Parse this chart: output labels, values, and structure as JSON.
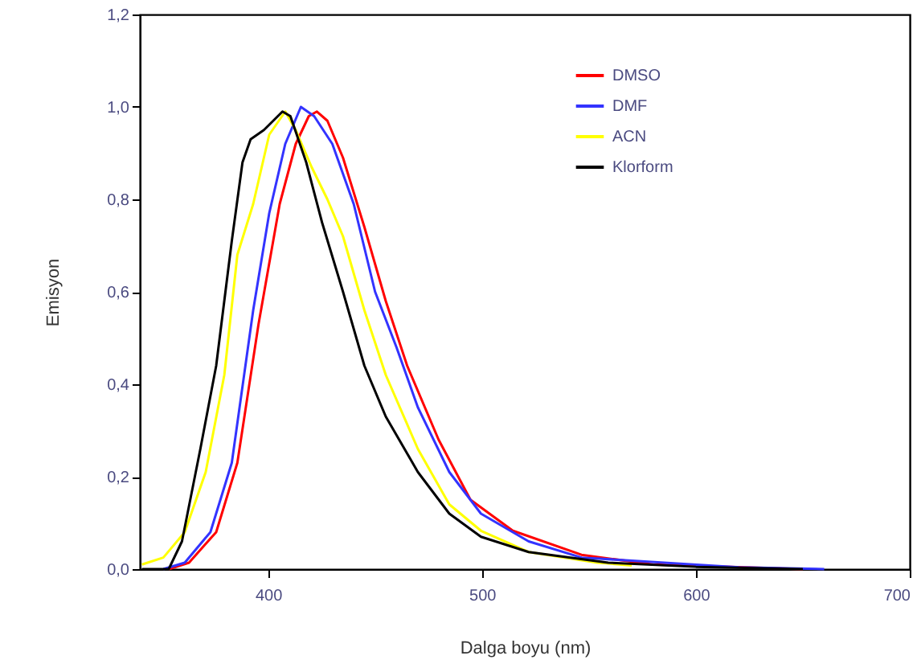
{
  "chart_data": {
    "type": "line",
    "xlabel": "Dalga boyu (nm)",
    "ylabel": "Emisyon",
    "xlim": [
      340,
      700
    ],
    "xticks": [
      400,
      500,
      600,
      700
    ],
    "ylim": [
      0,
      1.2
    ],
    "yticks": [
      {
        "value": 0,
        "label": "0,0"
      },
      {
        "value": 0.2,
        "label": "0,2"
      },
      {
        "value": 0.4,
        "label": "0,4"
      },
      {
        "value": 0.6,
        "label": "0,6"
      },
      {
        "value": 0.8,
        "label": "0,8"
      },
      {
        "value": 1.0,
        "label": "1,0"
      },
      {
        "value": 1.2,
        "label": "1,2"
      }
    ],
    "grid": false,
    "legend": "top right",
    "line_style": "solid",
    "series": [
      {
        "name": "DMSO",
        "color": "#ff0000",
        "x": [
          353.5,
          363,
          375.7,
          385.6,
          395.5,
          405.4,
          412.9,
          419,
          422.8,
          427.7,
          435,
          445,
          455,
          465,
          479.7,
          494.6,
          514.4,
          546.5,
          580,
          650
        ],
        "values": [
          0,
          0.014,
          0.08,
          0.23,
          0.53,
          0.79,
          0.92,
          0.98,
          0.99,
          0.97,
          0.89,
          0.74,
          0.58,
          0.44,
          0.28,
          0.15,
          0.083,
          0.031,
          0.01,
          0
        ]
      },
      {
        "name": "DMF",
        "color": "#3333ff",
        "x": [
          351,
          361,
          373,
          383,
          393,
          400.5,
          408,
          415.3,
          421.5,
          430,
          440,
          450,
          460,
          470,
          484.7,
          499.5,
          521.8,
          546.5,
          620,
          660
        ],
        "values": [
          0,
          0.014,
          0.08,
          0.23,
          0.56,
          0.77,
          0.92,
          1.0,
          0.98,
          0.92,
          0.79,
          0.6,
          0.48,
          0.35,
          0.21,
          0.12,
          0.06,
          0.025,
          0.004,
          0
        ]
      },
      {
        "name": "ACN",
        "color": "#ffff00",
        "x": [
          341,
          351,
          361,
          370.8,
          379.5,
          385.6,
          393,
          400.5,
          408,
          412.9,
          420.3,
          427.7,
          435,
          445,
          455,
          470,
          484.7,
          499.5,
          521.8,
          554,
          570
        ],
        "values": [
          0.01,
          0.025,
          0.08,
          0.21,
          0.42,
          0.68,
          0.79,
          0.94,
          0.99,
          0.95,
          0.87,
          0.8,
          0.72,
          0.56,
          0.42,
          0.26,
          0.14,
          0.083,
          0.037,
          0.014,
          0.008
        ]
      },
      {
        "name": "Klorform",
        "color": "#000000",
        "x": [
          341,
          353.5,
          359.7,
          368.3,
          375.7,
          383,
          388,
          391.8,
          398,
          406.7,
          410.4,
          417.8,
          425.2,
          435,
          445,
          455,
          470,
          484.7,
          499.5,
          521.8,
          559,
          600,
          650
        ],
        "values": [
          0,
          0,
          0.06,
          0.26,
          0.44,
          0.71,
          0.88,
          0.93,
          0.95,
          0.99,
          0.98,
          0.88,
          0.75,
          0.6,
          0.44,
          0.33,
          0.21,
          0.12,
          0.07,
          0.037,
          0.014,
          0.005,
          0
        ]
      }
    ]
  }
}
